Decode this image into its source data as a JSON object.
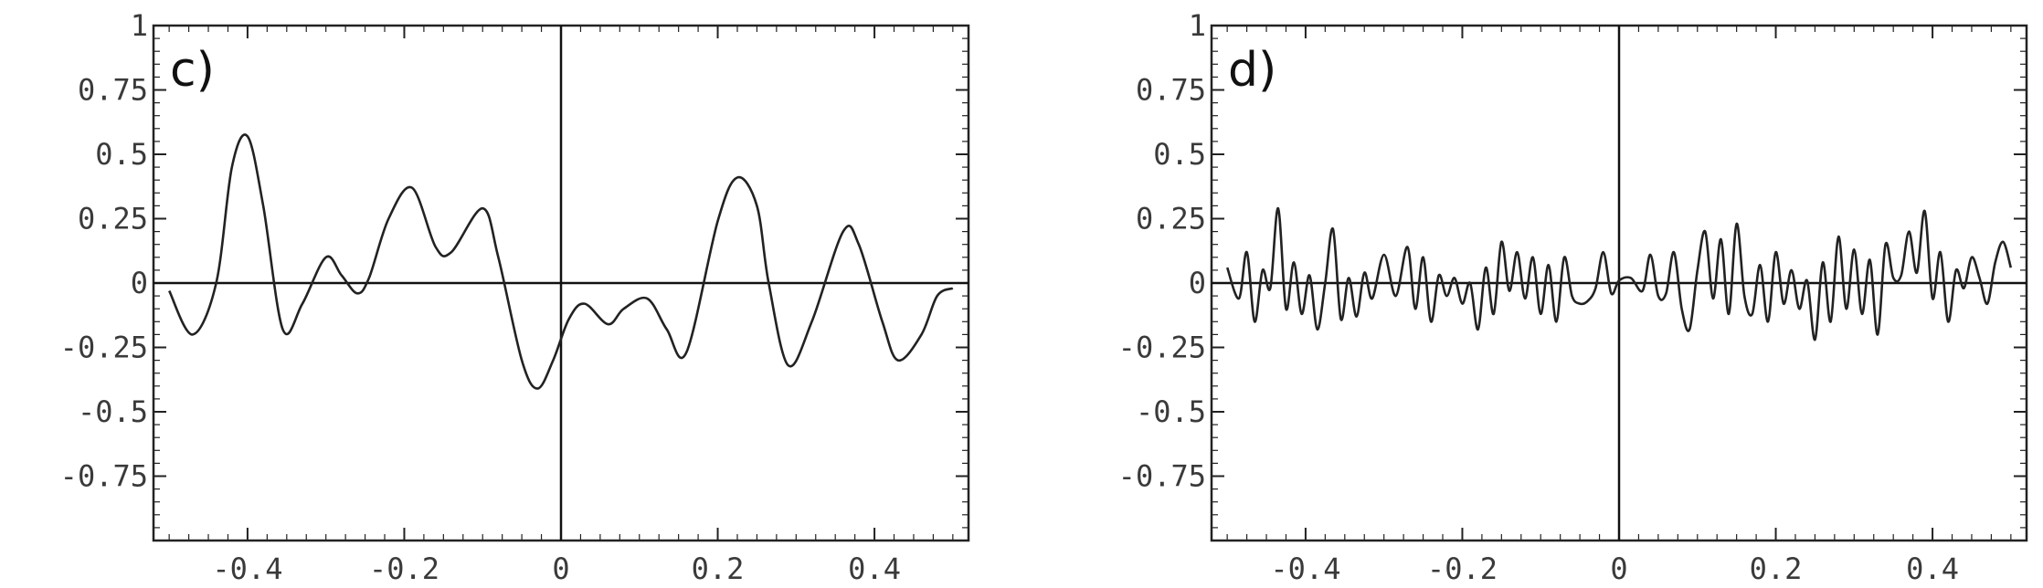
{
  "chart_data": [
    {
      "type": "line",
      "panel_label": "c)",
      "xlim": [
        -0.52,
        0.52
      ],
      "ylim": [
        -1,
        1
      ],
      "x_ticks": [
        -0.4,
        -0.2,
        0,
        0.2,
        0.4
      ],
      "x_tick_labels": [
        "-0.4",
        "-0.2",
        "0",
        "0.2",
        "0.4"
      ],
      "y_ticks": [
        1,
        0.75,
        0.5,
        0.25,
        0,
        -0.25,
        -0.5,
        -0.75
      ],
      "y_tick_labels": [
        "1",
        "0.75",
        "0.5",
        "0.25",
        "0",
        "-0.25",
        "-0.5",
        "-0.75"
      ],
      "grid": false,
      "series": [
        {
          "x": [
            -0.5,
            -0.47,
            -0.44,
            -0.42,
            -0.4,
            -0.38,
            -0.355,
            -0.33,
            -0.3,
            -0.28,
            -0.26,
            -0.245,
            -0.22,
            -0.19,
            -0.16,
            -0.14,
            -0.1,
            -0.08,
            -0.05,
            -0.03,
            -0.01,
            0.01,
            0.03,
            0.06,
            0.08,
            0.11,
            0.135,
            0.16,
            0.2,
            0.225,
            0.25,
            0.265,
            0.29,
            0.32,
            0.36,
            0.38,
            0.41,
            0.43,
            0.46,
            0.48,
            0.5
          ],
          "y": [
            -0.03,
            -0.2,
            0.0,
            0.45,
            0.57,
            0.3,
            -0.18,
            -0.08,
            0.1,
            0.03,
            -0.04,
            0.02,
            0.25,
            0.37,
            0.14,
            0.12,
            0.29,
            0.1,
            -0.3,
            -0.41,
            -0.3,
            -0.14,
            -0.08,
            -0.16,
            -0.1,
            -0.06,
            -0.18,
            -0.27,
            0.24,
            0.41,
            0.3,
            0.0,
            -0.32,
            -0.15,
            0.2,
            0.15,
            -0.15,
            -0.3,
            -0.2,
            -0.05,
            -0.02
          ]
        }
      ]
    },
    {
      "type": "line",
      "panel_label": "d)",
      "xlim": [
        -0.52,
        0.52
      ],
      "ylim": [
        -1,
        1
      ],
      "x_ticks": [
        -0.4,
        -0.2,
        0,
        0.2,
        0.4
      ],
      "x_tick_labels": [
        "-0.4",
        "-0.2",
        "0",
        "0.2",
        "0.4"
      ],
      "y_ticks": [
        1,
        0.75,
        0.5,
        0.25,
        0,
        -0.25,
        -0.5,
        -0.75
      ],
      "y_tick_labels": [
        "1",
        "0.75",
        "0.5",
        "0.25",
        "0",
        "-0.25",
        "-0.5",
        "-0.75"
      ],
      "grid": false,
      "series": [
        {
          "x": [
            -0.5,
            -0.485,
            -0.475,
            -0.465,
            -0.455,
            -0.445,
            -0.435,
            -0.425,
            -0.415,
            -0.405,
            -0.395,
            -0.385,
            -0.375,
            -0.365,
            -0.355,
            -0.345,
            -0.335,
            -0.325,
            -0.315,
            -0.3,
            -0.285,
            -0.27,
            -0.26,
            -0.25,
            -0.24,
            -0.23,
            -0.22,
            -0.21,
            -0.2,
            -0.19,
            -0.18,
            -0.17,
            -0.16,
            -0.15,
            -0.14,
            -0.13,
            -0.12,
            -0.11,
            -0.1,
            -0.09,
            -0.08,
            -0.07,
            -0.06,
            -0.05,
            -0.04,
            -0.03,
            -0.02,
            -0.01,
            0.0,
            0.015,
            0.03,
            0.04,
            0.05,
            0.06,
            0.07,
            0.08,
            0.09,
            0.1,
            0.11,
            0.12,
            0.13,
            0.14,
            0.15,
            0.16,
            0.17,
            0.18,
            0.19,
            0.2,
            0.21,
            0.22,
            0.23,
            0.24,
            0.25,
            0.26,
            0.27,
            0.28,
            0.29,
            0.3,
            0.31,
            0.32,
            0.33,
            0.34,
            0.35,
            0.36,
            0.37,
            0.38,
            0.39,
            0.4,
            0.41,
            0.42,
            0.43,
            0.44,
            0.45,
            0.46,
            0.47,
            0.48,
            0.49,
            0.5
          ],
          "y": [
            0.06,
            -0.06,
            0.12,
            -0.15,
            0.05,
            -0.02,
            0.29,
            -0.1,
            0.08,
            -0.12,
            0.03,
            -0.18,
            0.0,
            0.21,
            -0.14,
            0.02,
            -0.13,
            0.04,
            -0.06,
            0.11,
            -0.05,
            0.14,
            -0.1,
            0.1,
            -0.15,
            0.03,
            -0.05,
            0.02,
            -0.08,
            0.0,
            -0.18,
            0.06,
            -0.12,
            0.16,
            -0.03,
            0.12,
            -0.06,
            0.1,
            -0.12,
            0.07,
            -0.15,
            0.1,
            -0.05,
            -0.08,
            -0.07,
            -0.02,
            0.12,
            -0.04,
            0.01,
            0.02,
            -0.03,
            0.11,
            -0.05,
            -0.04,
            0.12,
            -0.1,
            -0.18,
            0.05,
            0.2,
            -0.06,
            0.17,
            -0.12,
            0.23,
            -0.05,
            -0.12,
            0.07,
            -0.15,
            0.12,
            -0.08,
            0.05,
            -0.1,
            0.01,
            -0.22,
            0.08,
            -0.15,
            0.18,
            -0.1,
            0.13,
            -0.12,
            0.09,
            -0.2,
            0.15,
            0.02,
            0.03,
            0.2,
            0.04,
            0.28,
            -0.06,
            0.12,
            -0.15,
            0.05,
            -0.02,
            0.1,
            0.02,
            -0.08,
            0.08,
            0.16,
            0.06
          ]
        }
      ]
    }
  ]
}
